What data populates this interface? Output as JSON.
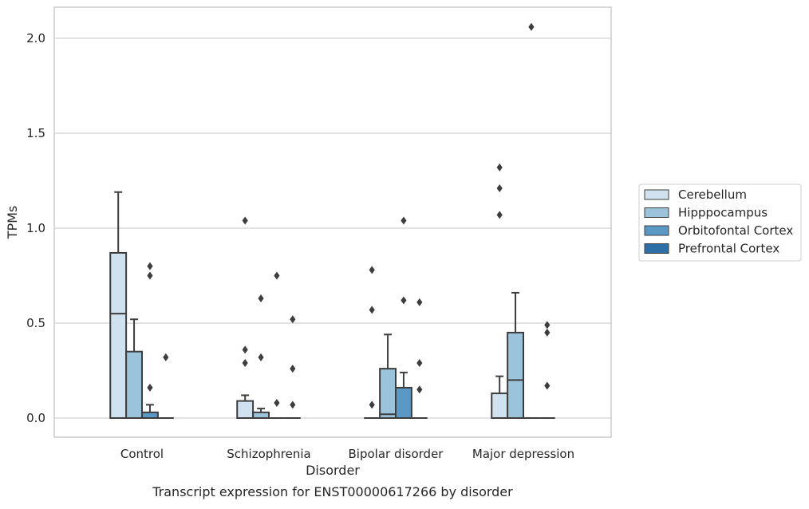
{
  "chart_data": {
    "type": "box",
    "xlabel": "Disorder",
    "ylabel": "TPMs",
    "caption": "Transcript expression for ENST00000617266 by disorder",
    "ylim": [
      -0.1,
      2.17
    ],
    "yticks": [
      0.0,
      0.5,
      1.0,
      1.5,
      2.0
    ],
    "ytick_labels": [
      "0.0",
      "0.5",
      "1.0",
      "1.5",
      "2.0"
    ],
    "grid": "horizontal",
    "legend_position": "right",
    "categories": [
      "Control",
      "Schizophrenia",
      "Bipolar disorder",
      "Major depression"
    ],
    "series": [
      {
        "name": "Cerebellum",
        "color": "#d0e1f0",
        "boxes": [
          {
            "q1": 0.0,
            "median": 0.55,
            "q3": 0.87,
            "whisker_low": 0.0,
            "whisker_high": 1.19,
            "outliers": []
          },
          {
            "q1": 0.0,
            "median": 0.0,
            "q3": 0.09,
            "whisker_low": 0.0,
            "whisker_high": 0.12,
            "outliers": [
              0.29,
              0.36,
              1.04
            ]
          },
          {
            "q1": 0.0,
            "median": 0.0,
            "q3": 0.0,
            "whisker_low": 0.0,
            "whisker_high": 0.0,
            "outliers": [
              0.07,
              0.57,
              0.78
            ]
          },
          {
            "q1": 0.0,
            "median": 0.0,
            "q3": 0.13,
            "whisker_low": 0.0,
            "whisker_high": 0.22,
            "outliers": [
              1.07,
              1.21,
              1.32
            ]
          }
        ]
      },
      {
        "name": "Hipppocampus",
        "color": "#9cc3dc",
        "boxes": [
          {
            "q1": 0.0,
            "median": 0.0,
            "q3": 0.35,
            "whisker_low": 0.0,
            "whisker_high": 0.52,
            "outliers": []
          },
          {
            "q1": 0.0,
            "median": 0.0,
            "q3": 0.03,
            "whisker_low": 0.0,
            "whisker_high": 0.05,
            "outliers": [
              0.32,
              0.63
            ]
          },
          {
            "q1": 0.0,
            "median": 0.02,
            "q3": 0.26,
            "whisker_low": 0.0,
            "whisker_high": 0.44,
            "outliers": []
          },
          {
            "q1": 0.0,
            "median": 0.2,
            "q3": 0.45,
            "whisker_low": 0.0,
            "whisker_high": 0.66,
            "outliers": []
          }
        ]
      },
      {
        "name": "Orbitofontal Cortex",
        "color": "#5a98c5",
        "boxes": [
          {
            "q1": 0.0,
            "median": 0.0,
            "q3": 0.03,
            "whisker_low": 0.0,
            "whisker_high": 0.07,
            "outliers": [
              0.16,
              0.75,
              0.8
            ]
          },
          {
            "q1": 0.0,
            "median": 0.0,
            "q3": 0.0,
            "whisker_low": 0.0,
            "whisker_high": 0.0,
            "outliers": [
              0.08,
              0.75
            ]
          },
          {
            "q1": 0.0,
            "median": 0.0,
            "q3": 0.16,
            "whisker_low": 0.0,
            "whisker_high": 0.24,
            "outliers": [
              0.62,
              1.04
            ]
          },
          {
            "q1": 0.0,
            "median": 0.0,
            "q3": 0.0,
            "whisker_low": 0.0,
            "whisker_high": 0.0,
            "outliers": [
              2.06
            ]
          }
        ]
      },
      {
        "name": "Prefrontal Cortex",
        "color": "#2e6fa8",
        "boxes": [
          {
            "q1": 0.0,
            "median": 0.0,
            "q3": 0.0,
            "whisker_low": 0.0,
            "whisker_high": 0.0,
            "outliers": [
              0.32
            ]
          },
          {
            "q1": 0.0,
            "median": 0.0,
            "q3": 0.0,
            "whisker_low": 0.0,
            "whisker_high": 0.0,
            "outliers": [
              0.07,
              0.26,
              0.52
            ]
          },
          {
            "q1": 0.0,
            "median": 0.0,
            "q3": 0.0,
            "whisker_low": 0.0,
            "whisker_high": 0.0,
            "outliers": [
              0.15,
              0.29,
              0.61
            ]
          },
          {
            "q1": 0.0,
            "median": 0.0,
            "q3": 0.0,
            "whisker_low": 0.0,
            "whisker_high": 0.0,
            "outliers": [
              0.17,
              0.45,
              0.49
            ]
          }
        ]
      }
    ]
  }
}
